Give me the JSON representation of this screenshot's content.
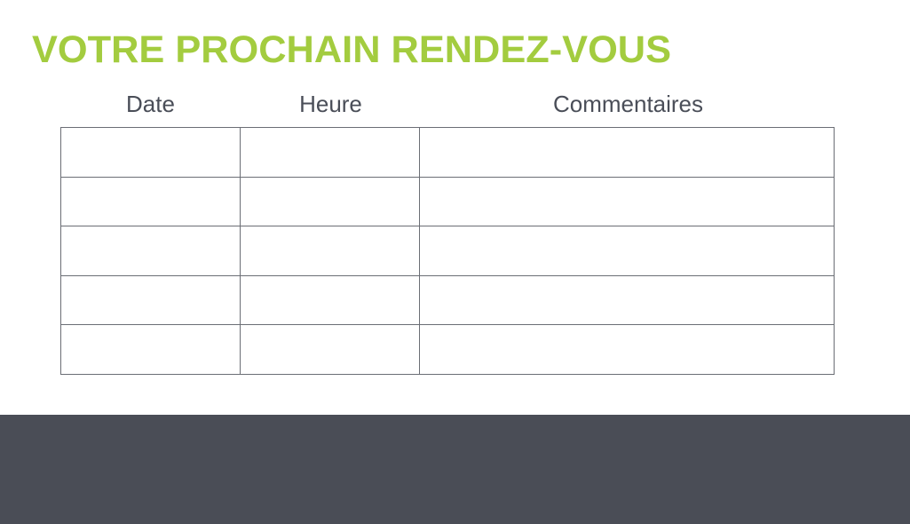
{
  "title": "VOTRE PROCHAIN RENDEZ-VOUS",
  "columns": [
    "Date",
    "Heure",
    "Commentaires"
  ],
  "rows": [
    [
      "",
      "",
      ""
    ],
    [
      "",
      "",
      ""
    ],
    [
      "",
      "",
      ""
    ],
    [
      "",
      "",
      ""
    ],
    [
      "",
      "",
      ""
    ]
  ],
  "colors": {
    "accent": "#a3cc3f",
    "text": "#4a4e58",
    "footer": "#4a4d56",
    "border": "#6b6e75"
  }
}
